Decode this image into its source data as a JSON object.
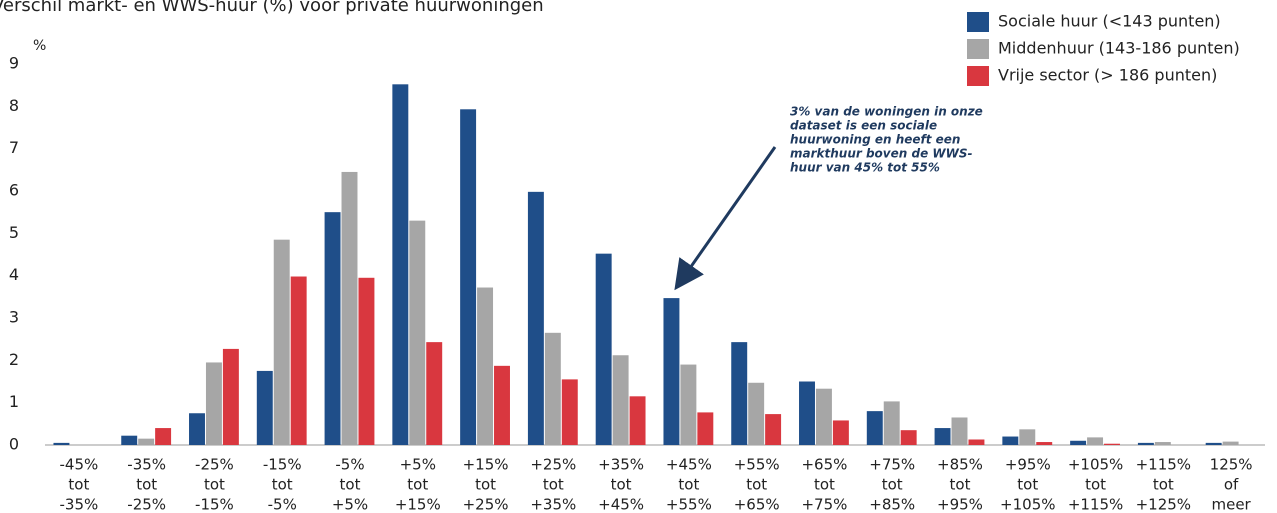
{
  "chart_data": {
    "type": "bar",
    "title": "Verschil markt- en WWS-huur (%) voor private huurwoningen",
    "y_label": "%",
    "categories": [
      [
        "-45%",
        "tot",
        "-35%"
      ],
      [
        "-35%",
        "tot",
        "-25%"
      ],
      [
        "-25%",
        "tot",
        "-15%"
      ],
      [
        "-15%",
        "tot",
        "-5%"
      ],
      [
        "-5%",
        "tot",
        "+5%"
      ],
      [
        "+5%",
        "tot",
        "+15%"
      ],
      [
        "+15%",
        "tot",
        "+25%"
      ],
      [
        "+25%",
        "tot",
        "+35%"
      ],
      [
        "+35%",
        "tot",
        "+45%"
      ],
      [
        "+45%",
        "tot",
        "+55%"
      ],
      [
        "+55%",
        "tot",
        "+65%"
      ],
      [
        "+65%",
        "tot",
        "+75%"
      ],
      [
        "+75%",
        "tot",
        "+85%"
      ],
      [
        "+85%",
        "tot",
        "+95%"
      ],
      [
        "+95%",
        "tot",
        "+105%"
      ],
      [
        "+105%",
        "tot",
        "+115%"
      ],
      [
        "+115%",
        "tot",
        "+125%"
      ],
      [
        "125%",
        "of",
        "meer"
      ]
    ],
    "series": [
      {
        "name": "Sociale huur (<143 punten)",
        "color": "#1f4e89",
        "values": [
          0.05,
          0.22,
          0.75,
          1.75,
          5.5,
          8.52,
          7.93,
          5.98,
          4.52,
          3.47,
          2.43,
          1.5,
          0.8,
          0.4,
          0.2,
          0.1,
          0.05,
          0.05
        ]
      },
      {
        "name": "Middenhuur (143-186 punten)",
        "color": "#a6a6a6",
        "values": [
          0,
          0.15,
          1.95,
          4.85,
          6.45,
          5.3,
          3.72,
          2.65,
          2.12,
          1.9,
          1.47,
          1.33,
          1.03,
          0.65,
          0.37,
          0.18,
          0.07,
          0.08
        ]
      },
      {
        "name": "Vrije sector (> 186 punten)",
        "color": "#d9373f",
        "values": [
          0,
          0.4,
          2.27,
          3.98,
          3.95,
          2.43,
          1.87,
          1.55,
          1.15,
          0.77,
          0.73,
          0.58,
          0.35,
          0.13,
          0.07,
          0.03,
          0,
          0
        ]
      }
    ],
    "ylim": [
      0,
      9
    ],
    "yticks": [
      0,
      1,
      2,
      3,
      4,
      5,
      6,
      7,
      8,
      9
    ],
    "grid": false,
    "legend": "top-right",
    "annotation": [
      "3% van de woningen in onze",
      "dataset is een sociale",
      "huurwoning en heeft een",
      "markthuur boven de WWS-",
      "huur van 45% tot 55%"
    ]
  }
}
